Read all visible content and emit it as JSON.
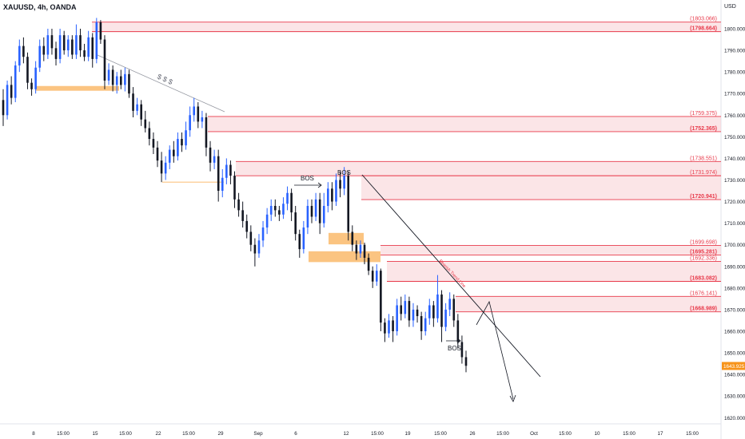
{
  "header": {
    "symbol_line": "XAUUSD, 4h, OANDA",
    "currency": "USD"
  },
  "chart_data": {
    "type": "candlestick",
    "title": "XAUUSD, 4h, OANDA",
    "ylabel": "USD",
    "ylim": [
      1615,
      1812
    ],
    "y_ticks": [
      1620,
      1630,
      1640,
      1650,
      1660,
      1670,
      1680,
      1690,
      1700,
      1710,
      1720,
      1730,
      1740,
      1750,
      1760,
      1770,
      1780,
      1790,
      1800
    ],
    "x_ticks": [
      "8",
      "15:00",
      "15",
      "15:00",
      "22",
      "15:00",
      "29",
      "Sep",
      "6",
      "12",
      "15:00",
      "19",
      "15:00",
      "26",
      "15:00",
      "Oct",
      "15:00",
      "10",
      "15:00",
      "17",
      "15:00"
    ],
    "last_price": "1643.925",
    "last_price_value": 1643.925,
    "colors": {
      "up": "#2962ff",
      "down": "#131722",
      "zone_fill": "#f7cfd3",
      "zone_line": "#e8394a",
      "orange": "#fbc481",
      "label_red": "#e8394a"
    },
    "zones": [
      {
        "top": 1803.066,
        "bottom": 1798.664,
        "top_label": "(1803.066)",
        "bottom_label": "(1798.664)"
      },
      {
        "top": 1759.375,
        "bottom": 1752.365,
        "top_label": "(1759.375)",
        "bottom_label": "(1752.365)"
      },
      {
        "top": 1738.551,
        "bottom": 1731.974,
        "top_label": "(1738.551)",
        "bottom_label": ""
      },
      {
        "top": 1731.974,
        "bottom": 1720.941,
        "top_label": "(1731.974)",
        "bottom_label": "(1720.941)"
      },
      {
        "top": 1699.698,
        "bottom": 1695.281,
        "top_label": "(1699.698)",
        "bottom_label": "(1695.281)"
      },
      {
        "top": 1692.336,
        "bottom": 1683.082,
        "top_label": "(1692.336)",
        "bottom_label": "(1683.082)"
      },
      {
        "top": 1676.141,
        "bottom": 1668.989,
        "top_label": "(1676.141)",
        "bottom_label": "(1668.989)"
      }
    ],
    "annotations": [
      "$ $ $",
      "BOS",
      "BOS",
      "BOS",
      "Bearish Trend Line"
    ],
    "candles": [
      [
        1767,
        1760,
        1772,
        1755
      ],
      [
        1760,
        1774,
        1776,
        1758
      ],
      [
        1774,
        1768,
        1778,
        1765
      ],
      [
        1768,
        1783,
        1785,
        1766
      ],
      [
        1783,
        1792,
        1795,
        1780
      ],
      [
        1792,
        1787,
        1796,
        1784
      ],
      [
        1787,
        1775,
        1789,
        1772
      ],
      [
        1775,
        1772,
        1777,
        1769
      ],
      [
        1772,
        1782,
        1785,
        1770
      ],
      [
        1782,
        1792,
        1795,
        1780
      ],
      [
        1792,
        1788,
        1796,
        1785
      ],
      [
        1788,
        1797,
        1800,
        1786
      ],
      [
        1797,
        1791,
        1800,
        1788
      ],
      [
        1791,
        1786,
        1794,
        1783
      ],
      [
        1786,
        1797,
        1800,
        1784
      ],
      [
        1797,
        1790,
        1799,
        1788
      ],
      [
        1790,
        1795,
        1797,
        1787
      ],
      [
        1795,
        1788,
        1797,
        1786
      ],
      [
        1788,
        1797,
        1802,
        1786
      ],
      [
        1797,
        1790,
        1800,
        1787
      ],
      [
        1790,
        1787,
        1793,
        1785
      ],
      [
        1787,
        1796,
        1799,
        1785
      ],
      [
        1796,
        1786,
        1798,
        1782
      ],
      [
        1786,
        1803,
        1805,
        1784
      ],
      [
        1803,
        1795,
        1804,
        1793
      ],
      [
        1795,
        1776,
        1797,
        1772
      ],
      [
        1776,
        1781,
        1784,
        1774
      ],
      [
        1781,
        1774,
        1783,
        1771
      ],
      [
        1774,
        1778,
        1780,
        1770
      ],
      [
        1778,
        1774,
        1781,
        1772
      ],
      [
        1774,
        1779,
        1782,
        1771
      ],
      [
        1779,
        1770,
        1781,
        1768
      ],
      [
        1770,
        1762,
        1773,
        1759
      ],
      [
        1762,
        1765,
        1768,
        1760
      ],
      [
        1765,
        1758,
        1767,
        1755
      ],
      [
        1758,
        1754,
        1762,
        1752
      ],
      [
        1754,
        1749,
        1757,
        1746
      ],
      [
        1749,
        1745,
        1752,
        1742
      ],
      [
        1745,
        1739,
        1748,
        1736
      ],
      [
        1739,
        1733,
        1743,
        1729
      ],
      [
        1733,
        1738,
        1741,
        1730
      ],
      [
        1738,
        1744,
        1746,
        1735
      ],
      [
        1744,
        1741,
        1748,
        1738
      ],
      [
        1741,
        1749,
        1752,
        1739
      ],
      [
        1749,
        1746,
        1752,
        1743
      ],
      [
        1746,
        1753,
        1757,
        1744
      ],
      [
        1753,
        1760,
        1764,
        1750
      ],
      [
        1760,
        1764,
        1768,
        1757
      ],
      [
        1764,
        1757,
        1766,
        1754
      ],
      [
        1757,
        1759,
        1762,
        1754
      ],
      [
        1759,
        1745,
        1761,
        1741
      ],
      [
        1745,
        1738,
        1748,
        1734
      ],
      [
        1738,
        1741,
        1744,
        1735
      ],
      [
        1741,
        1725,
        1744,
        1720
      ],
      [
        1725,
        1731,
        1735,
        1722
      ],
      [
        1731,
        1737,
        1740,
        1728
      ],
      [
        1737,
        1732,
        1739,
        1728
      ],
      [
        1732,
        1721,
        1734,
        1717
      ],
      [
        1721,
        1716,
        1724,
        1713
      ],
      [
        1716,
        1711,
        1720,
        1708
      ],
      [
        1711,
        1706,
        1714,
        1703
      ],
      [
        1706,
        1700,
        1709,
        1697
      ],
      [
        1700,
        1696,
        1703,
        1690
      ],
      [
        1696,
        1702,
        1705,
        1694
      ],
      [
        1702,
        1708,
        1711,
        1699
      ],
      [
        1708,
        1714,
        1717,
        1705
      ],
      [
        1714,
        1718,
        1721,
        1711
      ],
      [
        1718,
        1716,
        1721,
        1713
      ],
      [
        1716,
        1714,
        1718,
        1711
      ],
      [
        1714,
        1719,
        1722,
        1712
      ],
      [
        1719,
        1724,
        1727,
        1716
      ],
      [
        1724,
        1715,
        1726,
        1711
      ],
      [
        1715,
        1705,
        1718,
        1702
      ],
      [
        1705,
        1698,
        1707,
        1694
      ],
      [
        1698,
        1708,
        1711,
        1696
      ],
      [
        1708,
        1718,
        1721,
        1705
      ],
      [
        1718,
        1713,
        1721,
        1710
      ],
      [
        1713,
        1721,
        1724,
        1711
      ],
      [
        1721,
        1710,
        1724,
        1705
      ],
      [
        1710,
        1718,
        1724,
        1708
      ],
      [
        1718,
        1726,
        1729,
        1715
      ],
      [
        1726,
        1720,
        1729,
        1716
      ],
      [
        1720,
        1730,
        1733,
        1718
      ],
      [
        1730,
        1726,
        1734,
        1722
      ],
      [
        1726,
        1732,
        1736,
        1723
      ],
      [
        1732,
        1706,
        1734,
        1702
      ],
      [
        1706,
        1700,
        1709,
        1697
      ],
      [
        1700,
        1696,
        1702,
        1693
      ],
      [
        1696,
        1700,
        1702,
        1694
      ],
      [
        1700,
        1694,
        1701,
        1691
      ],
      [
        1694,
        1688,
        1696,
        1686
      ],
      [
        1688,
        1683,
        1690,
        1680
      ],
      [
        1683,
        1688,
        1691,
        1681
      ],
      [
        1688,
        1664,
        1689,
        1660
      ],
      [
        1664,
        1659,
        1666,
        1655
      ],
      [
        1659,
        1665,
        1668,
        1657
      ],
      [
        1665,
        1660,
        1667,
        1655
      ],
      [
        1660,
        1672,
        1675,
        1658
      ],
      [
        1672,
        1668,
        1676,
        1665
      ],
      [
        1668,
        1674,
        1677,
        1666
      ],
      [
        1674,
        1665,
        1676,
        1662
      ],
      [
        1665,
        1670,
        1673,
        1662
      ],
      [
        1670,
        1667,
        1672,
        1664
      ],
      [
        1667,
        1660,
        1669,
        1656
      ],
      [
        1660,
        1666,
        1669,
        1658
      ],
      [
        1666,
        1672,
        1675,
        1663
      ],
      [
        1672,
        1666,
        1674,
        1662
      ],
      [
        1666,
        1677,
        1686,
        1664
      ],
      [
        1677,
        1662,
        1679,
        1655
      ],
      [
        1662,
        1670,
        1673,
        1660
      ],
      [
        1670,
        1675,
        1678,
        1667
      ],
      [
        1675,
        1665,
        1677,
        1662
      ],
      [
        1665,
        1655,
        1668,
        1652
      ],
      [
        1655,
        1648,
        1658,
        1645
      ],
      [
        1648,
        1644,
        1651,
        1641
      ]
    ]
  }
}
